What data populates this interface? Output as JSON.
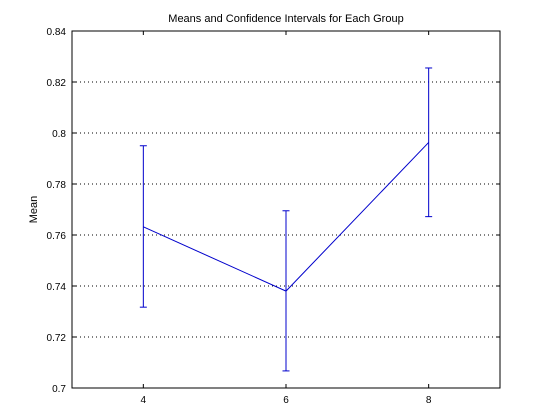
{
  "chart_data": {
    "type": "line",
    "title": "Means and Confidence Intervals for Each Group",
    "xlabel": "",
    "ylabel": "Mean",
    "x": [
      4,
      6,
      8
    ],
    "series": [
      {
        "values": [
          0.7632,
          0.738,
          0.7963
        ],
        "lower": [
          0.7317,
          0.7067,
          0.7672
        ],
        "upper": [
          0.795,
          0.7695,
          0.8255
        ]
      }
    ],
    "xlim": [
      3,
      9
    ],
    "ylim": [
      0.7,
      0.84
    ],
    "xticks": [
      "4",
      "6",
      "8"
    ],
    "yticks": [
      "0.7",
      "0.72",
      "0.74",
      "0.76",
      "0.78",
      "0.8",
      "0.82",
      "0.84"
    ],
    "grid": "y-dotted",
    "colors": {
      "series": "#0000cc",
      "grid": "#000000",
      "axes": "#000000"
    }
  }
}
